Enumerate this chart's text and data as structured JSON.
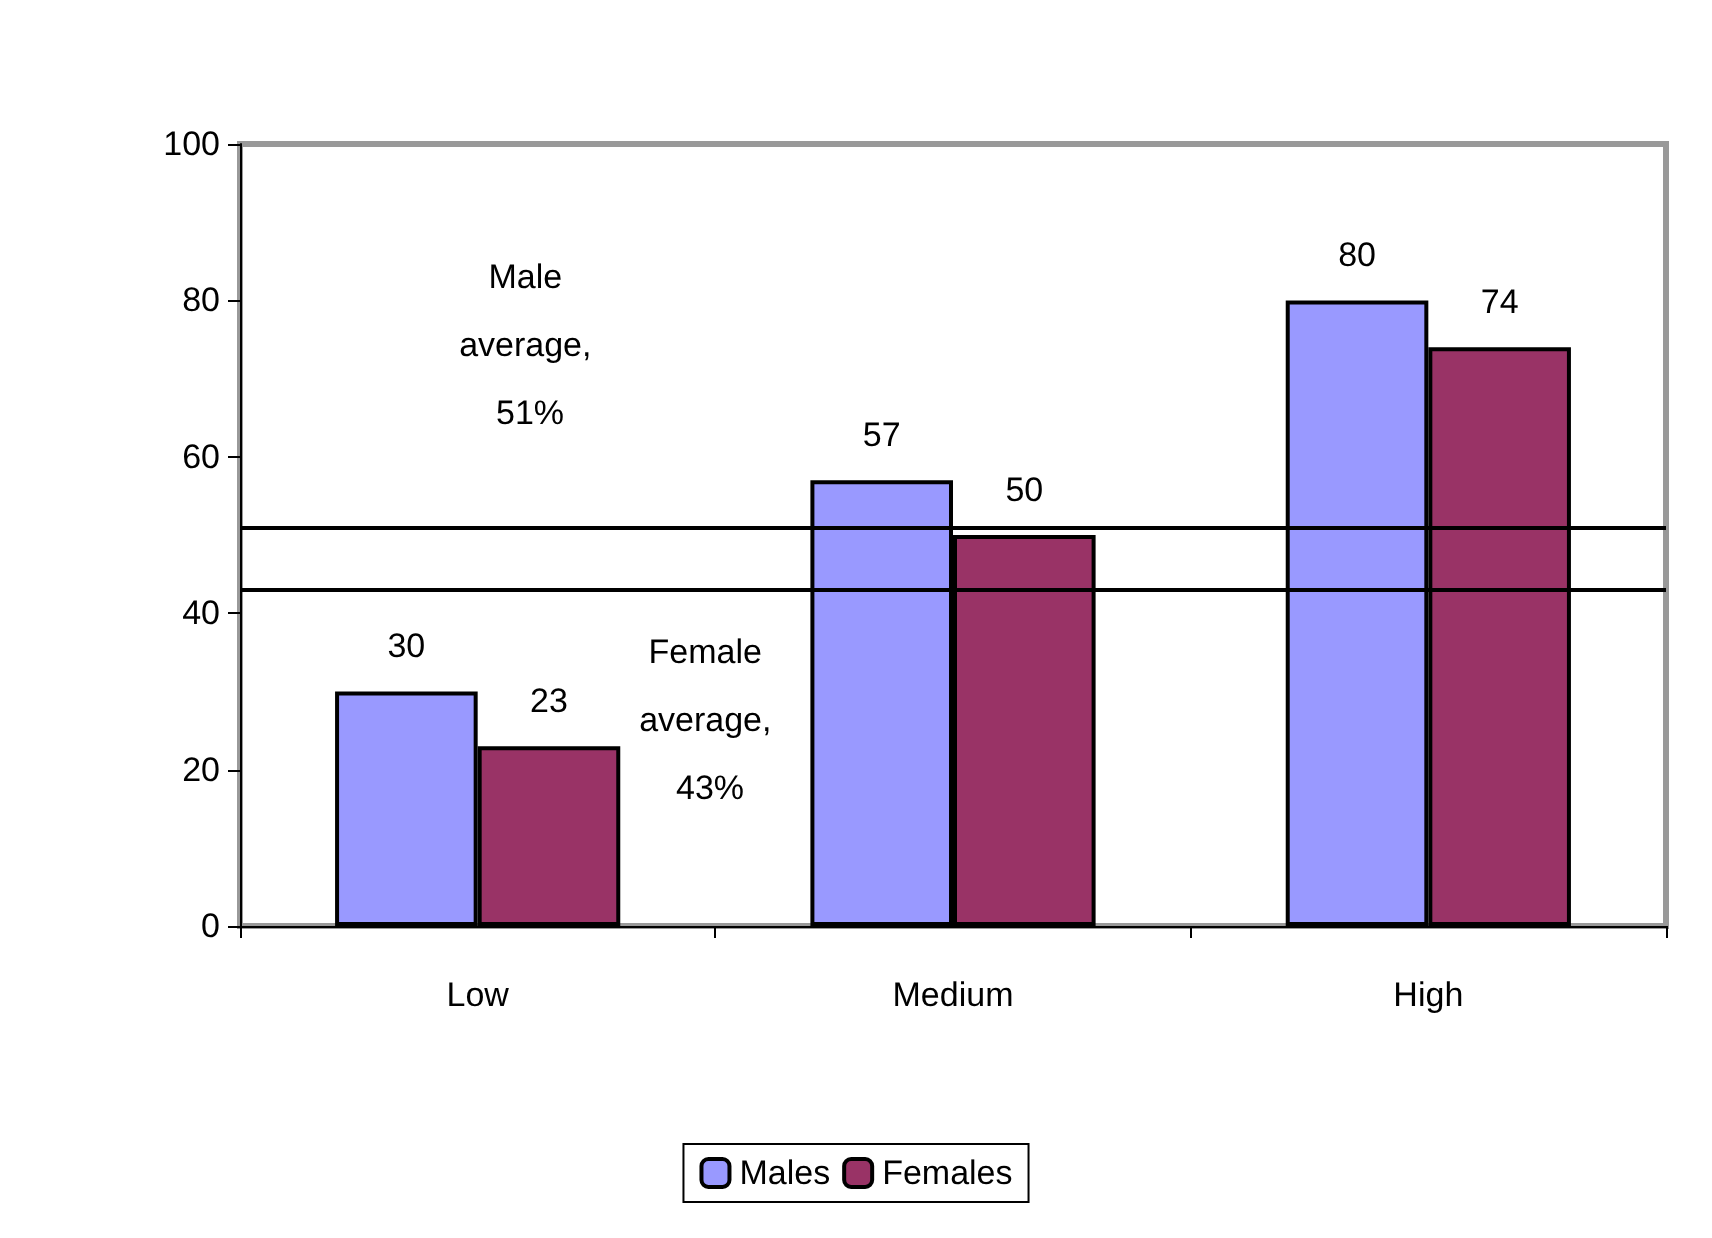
{
  "chart_data": {
    "type": "bar",
    "categories": [
      "Low",
      "Medium",
      "High"
    ],
    "series": [
      {
        "name": "Males",
        "color": "#9999ff",
        "values": [
          30,
          57,
          80
        ]
      },
      {
        "name": "Females",
        "color": "#993366",
        "values": [
          23,
          50,
          74
        ]
      }
    ],
    "ylim": [
      0,
      100
    ],
    "yticks": [
      0,
      20,
      40,
      60,
      80,
      100
    ],
    "grid": false,
    "legend": "bottom",
    "data_labels": true,
    "ref_lines": [
      {
        "axis": "y",
        "value": 51,
        "label": "Male average, 51%",
        "color": "#000000"
      },
      {
        "axis": "y",
        "value": 43,
        "label": "Female average, 43%",
        "color": "#000000"
      }
    ]
  }
}
